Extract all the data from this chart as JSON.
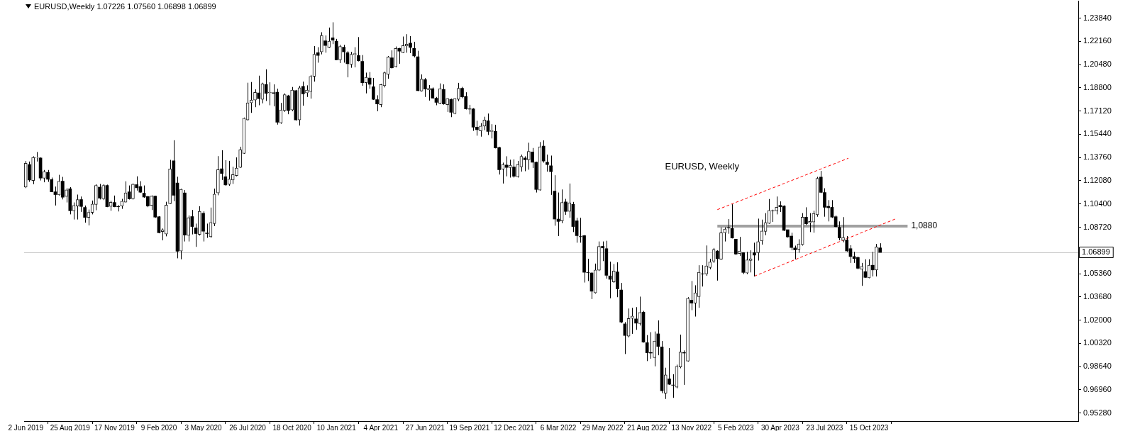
{
  "chart_data": {
    "type": "candlestick",
    "title": "EURUSD,Weekly 1.07226 1.07560 1.06898 1.06899",
    "x": [
      "2019-06-02",
      "2019-06-09",
      "2019-06-16",
      "2019-06-23",
      "2019-06-30",
      "2019-07-07",
      "2019-07-14",
      "2019-07-21",
      "2019-07-28",
      "2019-08-04",
      "2019-08-11",
      "2019-08-18",
      "2019-08-25",
      "2019-09-01",
      "2019-09-08",
      "2019-09-15",
      "2019-09-22",
      "2019-09-29",
      "2019-10-06",
      "2019-10-13",
      "2019-10-20",
      "2019-10-27",
      "2019-11-03",
      "2019-11-10",
      "2019-11-17",
      "2019-11-24",
      "2019-12-01",
      "2019-12-08",
      "2019-12-15",
      "2019-12-22",
      "2019-12-29",
      "2020-01-05",
      "2020-01-12",
      "2020-01-19",
      "2020-01-26",
      "2020-02-02",
      "2020-02-09",
      "2020-02-16",
      "2020-02-23",
      "2020-03-01",
      "2020-03-08",
      "2020-03-15",
      "2020-03-22",
      "2020-03-29",
      "2020-04-05",
      "2020-04-12",
      "2020-04-19",
      "2020-04-26",
      "2020-05-03",
      "2020-05-10",
      "2020-05-17",
      "2020-05-24",
      "2020-05-31",
      "2020-06-07",
      "2020-06-14",
      "2020-06-21",
      "2020-06-28",
      "2020-07-05",
      "2020-07-12",
      "2020-07-19",
      "2020-07-26",
      "2020-08-02",
      "2020-08-09",
      "2020-08-16",
      "2020-08-23",
      "2020-08-30",
      "2020-09-06",
      "2020-09-13",
      "2020-09-20",
      "2020-09-27",
      "2020-10-04",
      "2020-10-11",
      "2020-10-18",
      "2020-10-25",
      "2020-11-01",
      "2020-11-08",
      "2020-11-15",
      "2020-11-22",
      "2020-11-29",
      "2020-12-06",
      "2020-12-13",
      "2020-12-20",
      "2020-12-27",
      "2021-01-03",
      "2021-01-10",
      "2021-01-17",
      "2021-01-24",
      "2021-01-31",
      "2021-02-07",
      "2021-02-14",
      "2021-02-21",
      "2021-02-28",
      "2021-03-07",
      "2021-03-14",
      "2021-03-21",
      "2021-03-28",
      "2021-04-04",
      "2021-04-11",
      "2021-04-18",
      "2021-04-25",
      "2021-05-02",
      "2021-05-09",
      "2021-05-16",
      "2021-05-23",
      "2021-05-30",
      "2021-06-06",
      "2021-06-13",
      "2021-06-20",
      "2021-06-27",
      "2021-07-04",
      "2021-07-11",
      "2021-07-18",
      "2021-07-25",
      "2021-08-01",
      "2021-08-08",
      "2021-08-15",
      "2021-08-22",
      "2021-08-29",
      "2021-09-05",
      "2021-09-12",
      "2021-09-19",
      "2021-09-26",
      "2021-10-03",
      "2021-10-10",
      "2021-10-17",
      "2021-10-24",
      "2021-10-31",
      "2021-11-07",
      "2021-11-14",
      "2021-11-21",
      "2021-11-28",
      "2021-12-05",
      "2021-12-12",
      "2021-12-19",
      "2021-12-26",
      "2022-01-02",
      "2022-01-09",
      "2022-01-16",
      "2022-01-23",
      "2022-01-30",
      "2022-02-06",
      "2022-02-13",
      "2022-02-20",
      "2022-02-27",
      "2022-03-06",
      "2022-03-13",
      "2022-03-20",
      "2022-03-27",
      "2022-04-03",
      "2022-04-10",
      "2022-04-17",
      "2022-04-24",
      "2022-05-01",
      "2022-05-08",
      "2022-05-15",
      "2022-05-22",
      "2022-05-29",
      "2022-06-05",
      "2022-06-12",
      "2022-06-19",
      "2022-06-26",
      "2022-07-03",
      "2022-07-10",
      "2022-07-17",
      "2022-07-24",
      "2022-07-31",
      "2022-08-07",
      "2022-08-14",
      "2022-08-21",
      "2022-08-28",
      "2022-09-04",
      "2022-09-11",
      "2022-09-18",
      "2022-09-25",
      "2022-10-02",
      "2022-10-09",
      "2022-10-16",
      "2022-10-23",
      "2022-10-30",
      "2022-11-06",
      "2022-11-13",
      "2022-11-20",
      "2022-11-27",
      "2022-12-04",
      "2022-12-11",
      "2022-12-18",
      "2022-12-25",
      "2023-01-01",
      "2023-01-08",
      "2023-01-15",
      "2023-01-22",
      "2023-01-29",
      "2023-02-05",
      "2023-02-12",
      "2023-02-19",
      "2023-02-26",
      "2023-03-05",
      "2023-03-12",
      "2023-03-19",
      "2023-03-26",
      "2023-04-02",
      "2023-04-09",
      "2023-04-16",
      "2023-04-23",
      "2023-04-30",
      "2023-05-07",
      "2023-05-14",
      "2023-05-21",
      "2023-05-28",
      "2023-06-04",
      "2023-06-11",
      "2023-06-18",
      "2023-06-25",
      "2023-07-02",
      "2023-07-09",
      "2023-07-16",
      "2023-07-23",
      "2023-07-30",
      "2023-08-06",
      "2023-08-13",
      "2023-08-20",
      "2023-08-27",
      "2023-09-03",
      "2023-09-10",
      "2023-09-17",
      "2023-09-24",
      "2023-10-01",
      "2023-10-08",
      "2023-10-15",
      "2023-10-22",
      "2023-10-29",
      "2023-11-05"
    ],
    "ohlc": [
      [
        1.1162,
        1.1351,
        1.1155,
        1.1334
      ],
      [
        1.1325,
        1.1347,
        1.12,
        1.1214
      ],
      [
        1.121,
        1.1385,
        1.1183,
        1.1377
      ],
      [
        1.1373,
        1.1416,
        1.1347,
        1.1375
      ],
      [
        1.1373,
        1.1377,
        1.121,
        1.1228
      ],
      [
        1.1226,
        1.1286,
        1.1197,
        1.1274
      ],
      [
        1.1269,
        1.1286,
        1.12,
        1.1219
      ],
      [
        1.1217,
        1.1231,
        1.1125,
        1.1128
      ],
      [
        1.1128,
        1.1166,
        1.1029,
        1.1108
      ],
      [
        1.1106,
        1.1251,
        1.1101,
        1.1205
      ],
      [
        1.1205,
        1.1236,
        1.1073,
        1.1089
      ],
      [
        1.1094,
        1.1154,
        1.1051,
        1.1142
      ],
      [
        1.115,
        1.1162,
        1.0965,
        1.0991
      ],
      [
        1.0991,
        1.1051,
        1.0928,
        1.1029
      ],
      [
        1.1025,
        1.1108,
        1.0928,
        1.1072
      ],
      [
        1.1072,
        1.1094,
        1.0983,
        1.1022
      ],
      [
        1.1015,
        1.1029,
        1.0905,
        1.0943
      ],
      [
        1.0943,
        1.1,
        1.0885,
        1.0979
      ],
      [
        1.0979,
        1.1065,
        1.0965,
        1.1039
      ],
      [
        1.1037,
        1.1183,
        1.0995,
        1.1174
      ],
      [
        1.1162,
        1.1185,
        1.1073,
        1.1082
      ],
      [
        1.1077,
        1.1183,
        1.1068,
        1.1174
      ],
      [
        1.1174,
        1.118,
        1.1017,
        1.102
      ],
      [
        1.1022,
        1.1063,
        1.0991,
        1.1053
      ],
      [
        1.1051,
        1.1101,
        1.1017,
        1.102
      ],
      [
        1.1022,
        1.1032,
        1.0986,
        1.102
      ],
      [
        1.1025,
        1.1077,
        1.1005,
        1.106
      ],
      [
        1.1053,
        1.1204,
        1.1051,
        1.112
      ],
      [
        1.1128,
        1.1174,
        1.1072,
        1.1077
      ],
      [
        1.1077,
        1.1188,
        1.1072,
        1.1183
      ],
      [
        1.118,
        1.124,
        1.1137,
        1.1157
      ],
      [
        1.1166,
        1.1205,
        1.112,
        1.1125
      ],
      [
        1.1118,
        1.1174,
        1.1085,
        1.109
      ],
      [
        1.1094,
        1.1097,
        1.1017,
        1.1025
      ],
      [
        1.103,
        1.1102,
        1.0996,
        1.1097
      ],
      [
        1.1097,
        1.1099,
        1.094,
        1.0945
      ],
      [
        1.0948,
        1.0952,
        1.0828,
        1.0832
      ],
      [
        1.084,
        1.0863,
        1.0777,
        1.0852
      ],
      [
        1.0823,
        1.1056,
        1.0806,
        1.1032
      ],
      [
        1.1042,
        1.1359,
        1.1039,
        1.1294
      ],
      [
        1.1352,
        1.1501,
        1.106,
        1.1103
      ],
      [
        1.1192,
        1.1237,
        1.0647,
        1.0698
      ],
      [
        1.07,
        1.115,
        1.064,
        1.1146
      ],
      [
        1.112,
        1.1141,
        1.0769,
        1.0815
      ],
      [
        1.0812,
        1.0957,
        1.0769,
        1.094
      ],
      [
        1.0949,
        1.0997,
        1.082,
        1.0877
      ],
      [
        1.0867,
        1.0898,
        1.073,
        1.0826
      ],
      [
        1.082,
        1.1024,
        1.0812,
        1.0987
      ],
      [
        1.0973,
        1.0987,
        1.0769,
        1.0843
      ],
      [
        1.083,
        1.0898,
        1.0795,
        1.0826
      ],
      [
        1.0803,
        1.1014,
        1.0795,
        1.0906
      ],
      [
        1.0898,
        1.1151,
        1.088,
        1.1112
      ],
      [
        1.112,
        1.1386,
        1.1103,
        1.1288
      ],
      [
        1.1295,
        1.1429,
        1.1214,
        1.1261
      ],
      [
        1.1237,
        1.1357,
        1.1172,
        1.1178
      ],
      [
        1.1182,
        1.1352,
        1.1172,
        1.122
      ],
      [
        1.1214,
        1.1309,
        1.1185,
        1.1252
      ],
      [
        1.1245,
        1.1377,
        1.124,
        1.13
      ],
      [
        1.1304,
        1.1454,
        1.13,
        1.1432
      ],
      [
        1.1406,
        1.1665,
        1.1403,
        1.166
      ],
      [
        1.1648,
        1.1917,
        1.1643,
        1.1771
      ],
      [
        1.1771,
        1.1922,
        1.1699,
        1.1792
      ],
      [
        1.1792,
        1.1869,
        1.174,
        1.1847
      ],
      [
        1.1843,
        1.1968,
        1.1754,
        1.1802
      ],
      [
        1.1797,
        1.1917,
        1.1768,
        1.1908
      ],
      [
        1.1905,
        1.2014,
        1.1785,
        1.184
      ],
      [
        1.1845,
        1.192,
        1.1754,
        1.1847
      ],
      [
        1.1845,
        1.1905,
        1.1746,
        1.184
      ],
      [
        1.1848,
        1.1874,
        1.1614,
        1.1631
      ],
      [
        1.1626,
        1.1771,
        1.162,
        1.172
      ],
      [
        1.1716,
        1.184,
        1.1706,
        1.1831
      ],
      [
        1.1823,
        1.1829,
        1.1689,
        1.1716
      ],
      [
        1.172,
        1.1886,
        1.1711,
        1.1864
      ],
      [
        1.186,
        1.1865,
        1.1643,
        1.1648
      ],
      [
        1.1648,
        1.1895,
        1.1607,
        1.1881
      ],
      [
        1.1891,
        1.1925,
        1.1751,
        1.1836
      ],
      [
        1.1843,
        1.1898,
        1.1814,
        1.1864
      ],
      [
        1.1853,
        1.1973,
        1.1802,
        1.1963
      ],
      [
        1.1963,
        1.2182,
        1.1925,
        1.2122
      ],
      [
        1.2134,
        1.2174,
        1.2062,
        1.2114
      ],
      [
        1.214,
        1.2282,
        1.2122,
        1.2259
      ],
      [
        1.222,
        1.2259,
        1.2134,
        1.2186
      ],
      [
        1.2174,
        1.2316,
        1.2169,
        1.2217
      ],
      [
        1.2242,
        1.2354,
        1.2196,
        1.2225
      ],
      [
        1.2217,
        1.2234,
        1.208,
        1.2083
      ],
      [
        1.2083,
        1.2191,
        1.2059,
        1.2179
      ],
      [
        1.2174,
        1.2191,
        1.2062,
        1.214
      ],
      [
        1.2134,
        1.2145,
        1.1956,
        1.2054
      ],
      [
        1.2049,
        1.214,
        1.2025,
        1.2122
      ],
      [
        1.2122,
        1.2174,
        1.2028,
        1.2128
      ],
      [
        1.2114,
        1.2247,
        1.2071,
        1.2076
      ],
      [
        1.2071,
        1.2117,
        1.1895,
        1.1917
      ],
      [
        1.1917,
        1.199,
        1.184,
        1.1956
      ],
      [
        1.1951,
        1.1994,
        1.1874,
        1.1905
      ],
      [
        1.1888,
        1.1951,
        1.1792,
        1.1797
      ],
      [
        1.1795,
        1.1826,
        1.1711,
        1.1763
      ],
      [
        1.1758,
        1.1908,
        1.174,
        1.1903
      ],
      [
        1.1895,
        1.1997,
        1.1883,
        1.1989
      ],
      [
        1.1977,
        1.211,
        1.1946,
        1.2104
      ],
      [
        1.2097,
        1.2151,
        1.202,
        1.2025
      ],
      [
        1.2032,
        1.2179,
        1.2028,
        1.2165
      ],
      [
        1.2165,
        1.2169,
        1.2054,
        1.2145
      ],
      [
        1.2134,
        1.2251,
        1.2131,
        1.2186
      ],
      [
        1.2182,
        1.2268,
        1.2134,
        1.2196
      ],
      [
        1.2203,
        1.2254,
        1.2131,
        1.2172
      ],
      [
        1.2165,
        1.2213,
        1.21,
        1.211
      ],
      [
        1.2105,
        1.2148,
        1.1857,
        1.186
      ],
      [
        1.1857,
        1.1977,
        1.1853,
        1.1943
      ],
      [
        1.1939,
        1.1951,
        1.1814,
        1.1871
      ],
      [
        1.1864,
        1.19,
        1.1788,
        1.1877
      ],
      [
        1.1874,
        1.1883,
        1.1802,
        1.1805
      ],
      [
        1.1805,
        1.1814,
        1.1754,
        1.1775
      ],
      [
        1.1768,
        1.1912,
        1.1763,
        1.1874
      ],
      [
        1.1869,
        1.1905,
        1.1758,
        1.1763
      ],
      [
        1.1758,
        1.1805,
        1.1706,
        1.1802
      ],
      [
        1.1797,
        1.1802,
        1.1668,
        1.1703
      ],
      [
        1.1694,
        1.1805,
        1.1689,
        1.1802
      ],
      [
        1.1796,
        1.1916,
        1.1784,
        1.1877
      ],
      [
        1.1877,
        1.1887,
        1.1805,
        1.1814
      ],
      [
        1.1819,
        1.1848,
        1.1723,
        1.1728
      ],
      [
        1.1728,
        1.1757,
        1.1688,
        1.1726
      ],
      [
        1.1728,
        1.1733,
        1.1569,
        1.1596
      ],
      [
        1.1596,
        1.1642,
        1.1534,
        1.1577
      ],
      [
        1.1569,
        1.1625,
        1.1527,
        1.1603
      ],
      [
        1.1603,
        1.1671,
        1.1574,
        1.1647
      ],
      [
        1.1642,
        1.1694,
        1.1539,
        1.1565
      ],
      [
        1.1565,
        1.1617,
        1.1514,
        1.157
      ],
      [
        1.1565,
        1.1613,
        1.1442,
        1.1445
      ],
      [
        1.1449,
        1.1454,
        1.1253,
        1.1288
      ],
      [
        1.1291,
        1.1339,
        1.1188,
        1.1325
      ],
      [
        1.1322,
        1.1385,
        1.124,
        1.1305
      ],
      [
        1.1303,
        1.136,
        1.1231,
        1.132
      ],
      [
        1.1308,
        1.1363,
        1.1231,
        1.124
      ],
      [
        1.1236,
        1.1351,
        1.1231,
        1.1325
      ],
      [
        1.1308,
        1.1397,
        1.1274,
        1.1385
      ],
      [
        1.1373,
        1.1385,
        1.1277,
        1.136
      ],
      [
        1.136,
        1.1483,
        1.1288,
        1.142
      ],
      [
        1.1416,
        1.1445,
        1.13,
        1.1342
      ],
      [
        1.1342,
        1.1346,
        1.1123,
        1.1145
      ],
      [
        1.114,
        1.1488,
        1.1137,
        1.1454
      ],
      [
        1.1459,
        1.15,
        1.1339,
        1.1351
      ],
      [
        1.1342,
        1.1397,
        1.1274,
        1.1325
      ],
      [
        1.1317,
        1.139,
        1.1106,
        1.1274
      ],
      [
        1.1133,
        1.1248,
        1.0883,
        1.0931
      ],
      [
        1.0931,
        1.1123,
        1.0808,
        1.0914
      ],
      [
        1.0918,
        1.1145,
        1.0901,
        1.1051
      ],
      [
        1.1055,
        1.1077,
        1.0962,
        1.0986
      ],
      [
        1.0986,
        1.1188,
        1.094,
        1.1048
      ],
      [
        1.1038,
        1.1055,
        1.0837,
        1.0877
      ],
      [
        1.0918,
        1.094,
        1.076,
        1.0811
      ],
      [
        1.0805,
        1.094,
        1.076,
        1.0803
      ],
      [
        1.0811,
        1.0815,
        1.0472,
        1.0546
      ],
      [
        1.0546,
        1.0644,
        1.0483,
        1.0544
      ],
      [
        1.0541,
        1.0546,
        1.0352,
        1.0409
      ],
      [
        1.0397,
        1.0609,
        1.0392,
        1.0563
      ],
      [
        1.0561,
        1.0769,
        1.0555,
        1.0733
      ],
      [
        1.0734,
        1.0769,
        1.0627,
        1.0722
      ],
      [
        1.0717,
        1.0774,
        1.05,
        1.0524
      ],
      [
        1.052,
        1.0623,
        1.0358,
        1.0495
      ],
      [
        1.0477,
        1.0606,
        1.0469,
        1.0555
      ],
      [
        1.0549,
        1.0618,
        1.0366,
        1.0426
      ],
      [
        1.0418,
        1.0469,
        1.0178,
        1.0186
      ],
      [
        1.0173,
        1.0186,
        0.9955,
        1.0089
      ],
      [
        1.0084,
        1.0284,
        1.0075,
        1.0212
      ],
      [
        1.0212,
        1.0289,
        1.0101,
        1.0229
      ],
      [
        1.0209,
        1.0294,
        1.013,
        1.0178
      ],
      [
        1.0175,
        1.037,
        1.0161,
        1.0255
      ],
      [
        1.0258,
        1.0267,
        1.0037,
        1.0041
      ],
      [
        1.0037,
        1.0092,
        0.9904,
        0.9964
      ],
      [
        0.9966,
        1.0113,
        0.9921,
        0.9962
      ],
      [
        0.9929,
        1.0118,
        0.9866,
        1.0049
      ],
      [
        1.0101,
        1.0198,
        0.9946,
        1.001
      ],
      [
        1.0006,
        1.0049,
        0.9672,
        0.9689
      ],
      [
        0.9672,
        0.9856,
        0.963,
        0.9804
      ],
      [
        0.9775,
        0.9998,
        0.9732,
        0.9736
      ],
      [
        0.9731,
        0.9809,
        0.9638,
        0.9729
      ],
      [
        0.9715,
        0.9878,
        0.9707,
        0.9866
      ],
      [
        0.9861,
        1.0095,
        0.9852,
        0.9969
      ],
      [
        0.9966,
        0.9981,
        0.9732,
        0.9962
      ],
      [
        0.9904,
        1.0366,
        0.99,
        1.0358
      ],
      [
        1.0344,
        1.0483,
        1.0272,
        1.0323
      ],
      [
        1.0323,
        1.0452,
        1.0226,
        1.0397
      ],
      [
        1.037,
        1.0597,
        1.0289,
        1.0546
      ],
      [
        1.0535,
        1.0597,
        1.0443,
        1.0533
      ],
      [
        1.0534,
        1.074,
        1.052,
        1.0592
      ],
      [
        1.058,
        1.0644,
        1.0568,
        1.062
      ],
      [
        1.0627,
        1.0722,
        1.0614,
        1.0709
      ],
      [
        1.07,
        1.0705,
        1.0486,
        1.0644
      ],
      [
        1.064,
        1.0871,
        1.0637,
        1.0832
      ],
      [
        1.0832,
        1.0871,
        1.0769,
        1.0859
      ],
      [
        1.0868,
        1.0931,
        1.0825,
        1.0866
      ],
      [
        1.0863,
        1.1038,
        1.0791,
        1.0794
      ],
      [
        1.0786,
        1.0786,
        1.0671,
        1.0678
      ],
      [
        1.0682,
        1.0802,
        1.0665,
        1.07
      ],
      [
        1.0688,
        1.0691,
        1.0533,
        1.0545
      ],
      [
        1.054,
        1.0694,
        1.0533,
        1.0636
      ],
      [
        1.0631,
        1.0705,
        1.0545,
        1.0643
      ],
      [
        1.0688,
        1.076,
        1.0516,
        1.067
      ],
      [
        1.0688,
        1.0934,
        1.0631,
        1.0768
      ],
      [
        1.0773,
        1.0927,
        1.0746,
        1.0845
      ],
      [
        1.0842,
        1.0974,
        1.0814,
        1.0905
      ],
      [
        1.09,
        1.1076,
        1.0897,
        1.0994
      ],
      [
        1.0991,
        1.0999,
        1.091,
        1.099
      ],
      [
        1.099,
        1.1094,
        1.0965,
        1.1016
      ],
      [
        1.103,
        1.1059,
        1.0982,
        1.102
      ],
      [
        1.1025,
        1.103,
        1.0845,
        1.0849
      ],
      [
        1.0854,
        1.0854,
        1.0797,
        1.0802
      ],
      [
        1.0808,
        1.0832,
        1.0705,
        1.0725
      ],
      [
        1.0722,
        1.0739,
        1.064,
        1.0708
      ],
      [
        1.0712,
        1.0785,
        1.0688,
        1.0751
      ],
      [
        1.0746,
        1.0974,
        1.0739,
        1.0945
      ],
      [
        1.0945,
        1.1016,
        1.0888,
        1.0897
      ],
      [
        1.0903,
        1.0974,
        1.0837,
        1.0914
      ],
      [
        1.091,
        1.0991,
        1.0832,
        1.0972
      ],
      [
        1.0962,
        1.1236,
        1.0948,
        1.1225
      ],
      [
        1.1234,
        1.1279,
        1.1119,
        1.1124
      ],
      [
        1.1123,
        1.1154,
        1.0948,
        1.1016
      ],
      [
        1.1023,
        1.1068,
        1.0914,
        1.1013
      ],
      [
        1.1016,
        1.1068,
        1.0939,
        1.0945
      ],
      [
        1.0948,
        1.0957,
        1.0871,
        1.0876
      ],
      [
        1.0871,
        1.0914,
        1.0777,
        1.0794
      ],
      [
        1.0777,
        1.0945,
        1.0763,
        1.0797
      ],
      [
        1.078,
        1.0808,
        1.0694,
        1.07
      ],
      [
        1.0717,
        1.0742,
        1.0614,
        1.066
      ],
      [
        1.066,
        1.0694,
        1.0614,
        1.0645
      ],
      [
        1.0653,
        1.066,
        1.0568,
        1.0575
      ],
      [
        1.0568,
        1.0614,
        1.0448,
        1.0588
      ],
      [
        1.0551,
        1.064,
        1.0506,
        1.0509
      ],
      [
        1.0506,
        1.064,
        1.0503,
        1.0597
      ],
      [
        1.0597,
        1.0694,
        1.0516,
        1.0563
      ],
      [
        1.0563,
        1.0751,
        1.0516,
        1.0729
      ],
      [
        1.07226,
        1.0756,
        1.06898,
        1.06899
      ]
    ],
    "series": [
      {
        "type": "line",
        "x": [
          "2023-01-01",
          "2023-09-06"
        ],
        "values": [
          1.0999,
          1.1371
        ],
        "color": "#ff0000",
        "line_style": "dashed"
      },
      {
        "type": "line",
        "x": [
          "2023-03-12",
          "2023-12-06"
        ],
        "values": [
          1.0518,
          1.0935
        ],
        "color": "#ff0000",
        "line_style": "dashed"
      },
      {
        "type": "line",
        "name": "1,0880",
        "x": [
          "2023-01-01",
          "2023-12-27"
        ],
        "values": [
          1.088,
          1.088
        ],
        "color": "#a0a0a0",
        "line_style": "solid"
      }
    ],
    "ref_lines": [
      {
        "axis": "y",
        "value": 1.06899,
        "label": "1.06899",
        "color": "#c8c8c8"
      }
    ],
    "annotations": [
      "EURUSD, Weekly"
    ],
    "marker": "none",
    "grid": false,
    "xlim": [
      "2019-05-30",
      "2024-11-14"
    ],
    "xticks": [
      {
        "value": "2019-06-02",
        "label": "2 Jun 2019"
      },
      {
        "value": "2019-08-25",
        "label": "25 Aug 2019"
      },
      {
        "value": "2019-11-17",
        "label": "17 Nov 2019"
      },
      {
        "value": "2020-02-09",
        "label": "9 Feb 2020"
      },
      {
        "value": "2020-05-03",
        "label": "3 May 2020"
      },
      {
        "value": "2020-07-26",
        "label": "26 Jul 2020"
      },
      {
        "value": "2020-10-18",
        "label": "18 Oct 2020"
      },
      {
        "value": "2021-01-10",
        "label": "10 Jan 2021"
      },
      {
        "value": "2021-04-04",
        "label": "4 Apr 2021"
      },
      {
        "value": "2021-06-27",
        "label": "27 Jun 2021"
      },
      {
        "value": "2021-09-19",
        "label": "19 Sep 2021"
      },
      {
        "value": "2021-12-12",
        "label": "12 Dec 2021"
      },
      {
        "value": "2022-03-06",
        "label": "6 Mar 2022"
      },
      {
        "value": "2022-05-29",
        "label": "29 May 2022"
      },
      {
        "value": "2022-08-21",
        "label": "21 Aug 2022"
      },
      {
        "value": "2022-11-13",
        "label": "13 Nov 2022"
      },
      {
        "value": "2023-02-05",
        "label": "5 Feb 2023"
      },
      {
        "value": "2023-04-30",
        "label": "30 Apr 2023"
      },
      {
        "value": "2023-07-23",
        "label": "23 Jul 2023"
      },
      {
        "value": "2023-10-15",
        "label": "15 Oct 2023"
      }
    ],
    "ylim": [
      0.947,
      1.2507
    ],
    "yticks": [
      {
        "value": 0.9528,
        "label": "0.95280"
      },
      {
        "value": 0.9696,
        "label": "0.96960"
      },
      {
        "value": 0.9864,
        "label": "0.98640"
      },
      {
        "value": 1.0032,
        "label": "1.00320"
      },
      {
        "value": 1.02,
        "label": "1.02000"
      },
      {
        "value": 1.0368,
        "label": "1.03680"
      },
      {
        "value": 1.0536,
        "label": "1.05360"
      },
      {
        "value": 1.0704,
        "label": null
      },
      {
        "value": 1.0872,
        "label": "1.08720"
      },
      {
        "value": 1.104,
        "label": "1.10400"
      },
      {
        "value": 1.1208,
        "label": "1.12080"
      },
      {
        "value": 1.1376,
        "label": "1.13760"
      },
      {
        "value": 1.1544,
        "label": "1.15440"
      },
      {
        "value": 1.1712,
        "label": "1.17120"
      },
      {
        "value": 1.188,
        "label": "1.18800"
      },
      {
        "value": 1.2048,
        "label": "1.20480"
      },
      {
        "value": 1.2216,
        "label": "1.22160"
      },
      {
        "value": 1.2384,
        "label": "1.23840"
      }
    ]
  }
}
